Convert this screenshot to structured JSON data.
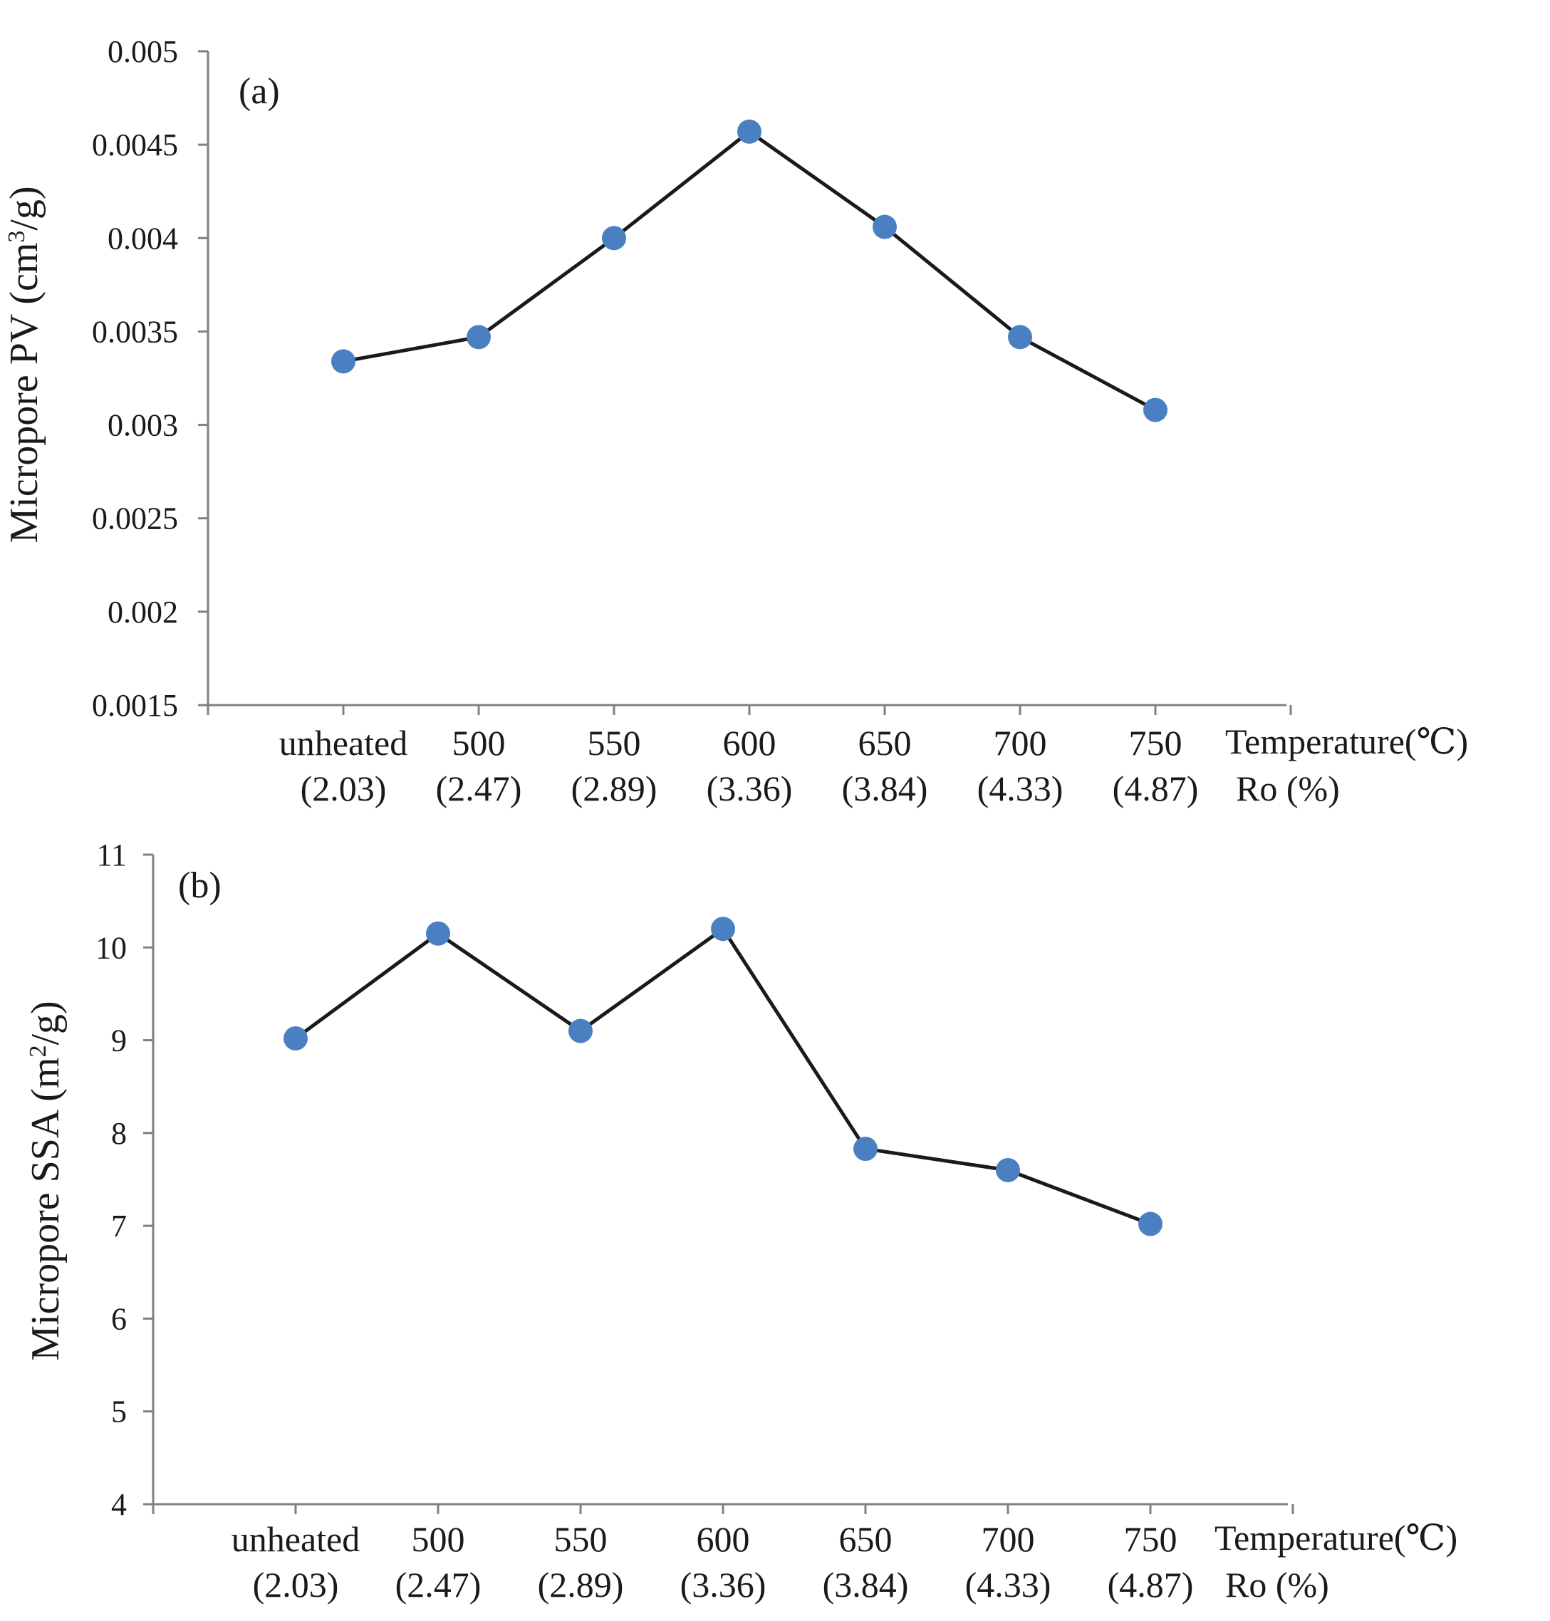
{
  "chart_data": [
    {
      "type": "line",
      "panel_label": "(a)",
      "ylabel": "Micropore PV (cm³/g)",
      "ylabel_parts": [
        "Micropore PV (cm",
        "3",
        "/g)"
      ],
      "ylim": [
        0.0015,
        0.005
      ],
      "yticks": [
        "0.005",
        "0.0045",
        "0.004",
        "0.0035",
        "0.003",
        "0.0025",
        "0.002",
        "0.0015"
      ],
      "ytick_values": [
        0.005,
        0.0045,
        0.004,
        0.0035,
        0.003,
        0.0025,
        0.002,
        0.0015
      ],
      "categories": [
        "unheated",
        "500",
        "550",
        "600",
        "650",
        "700",
        "750"
      ],
      "ro_values": [
        "(2.03)",
        "(2.47)",
        "(2.89)",
        "(3.36)",
        "(3.84)",
        "(4.33)",
        "(4.87)"
      ],
      "xlabel_temperature": "Temperature(℃)",
      "xlabel_ro": "Ro (%)",
      "series": [
        {
          "name": "Micropore PV",
          "values": [
            0.00334,
            0.00347,
            0.004,
            0.00457,
            0.00406,
            0.00347,
            0.00308
          ]
        }
      ]
    },
    {
      "type": "line",
      "panel_label": "(b)",
      "ylabel": "Micropore SSA (m²/g)",
      "ylabel_parts": [
        "Micropore SSA (m",
        "2",
        "/g)"
      ],
      "ylim": [
        4,
        11
      ],
      "yticks": [
        "11",
        "10",
        "9",
        "8",
        "7",
        "6",
        "5",
        "4"
      ],
      "ytick_values": [
        11,
        10,
        9,
        8,
        7,
        6,
        5,
        4
      ],
      "categories": [
        "unheated",
        "500",
        "550",
        "600",
        "650",
        "700",
        "750"
      ],
      "ro_values": [
        "(2.03)",
        "(2.47)",
        "(2.89)",
        "(3.36)",
        "(3.84)",
        "(4.33)",
        "(4.87)"
      ],
      "xlabel_temperature": "Temperature(℃)",
      "xlabel_ro": "Ro (%)",
      "series": [
        {
          "name": "Micropore SSA",
          "values": [
            9.02,
            10.15,
            9.1,
            10.2,
            7.83,
            7.6,
            7.02
          ]
        }
      ]
    }
  ],
  "colors": {
    "marker": "#4a7fc1",
    "line": "#1a1a1a",
    "axis": "#808080"
  }
}
